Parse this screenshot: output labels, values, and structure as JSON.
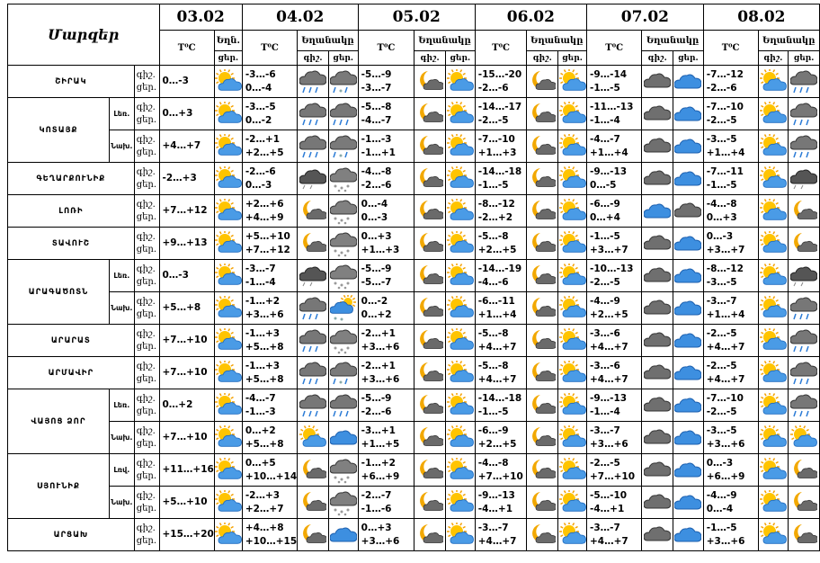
{
  "title": "Մարզեր",
  "dates": [
    "03.02",
    "04.02",
    "05.02",
    "06.02",
    "07.02",
    "08.02"
  ],
  "col_temp": "T⁰C",
  "col_weather": "Եղանակը",
  "col_weather_short": "Եղն.",
  "col_night": "գիշ.",
  "col_day": "ցեր.",
  "row_labels": {
    "night": "գիշ.",
    "day": "ցեր."
  },
  "rows": [
    {
      "region": "ՇԻՐԱԿ",
      "sub": "",
      "night": [
        "0…-3",
        "-3…-6",
        "-5…-9",
        "-15…-20",
        "-9…-14",
        "-7…-12"
      ],
      "day": [
        "",
        "0…-4",
        "-3…-7",
        "-2…-6",
        "-1…-5",
        "-2…-6"
      ],
      "icons": [
        "sun-cloud",
        "rain",
        "snow-rain",
        "moon-cloud",
        "sun-cloud",
        "moon-cloud",
        "sun-cloud",
        "cloud",
        "cloud-blue"
      ]
    },
    {
      "region": "ԿՈՏԱՅՔ",
      "sub": "Լեռ.",
      "night": [
        "0…+3",
        "-3…-5",
        "-5…-8",
        "-14…-17",
        "-11…-13",
        "-7…-10"
      ],
      "day": [
        "",
        "0…-2",
        "-4…-7",
        "-2…-5",
        "-1…-4",
        "-2…-5"
      ],
      "icons": [
        "sun-cloud",
        "rain",
        "rain",
        "moon-cloud",
        "sun-cloud",
        "moon-cloud",
        "sun-cloud",
        "cloud",
        "cloud-blue"
      ]
    },
    {
      "region": "",
      "sub": "Նախ.",
      "night": [
        "+4…+7",
        "-2…+1",
        "-1…-3",
        "-7…-10",
        "-4…-7",
        "-3…-5"
      ],
      "day": [
        "",
        "+2…+5",
        "-1…+1",
        "+1…+3",
        "+1…+4",
        "+1…+4"
      ],
      "icons": [
        "sun-cloud",
        "rain",
        "snow-rain",
        "moon-cloud",
        "sun-cloud",
        "moon-cloud",
        "sun-cloud",
        "cloud",
        "cloud-blue"
      ]
    },
    {
      "region": "ԳԵՂԱՐՔՈՒՆԻՔ",
      "sub": "",
      "night": [
        "-2…+3",
        "-2…-6",
        "-4…-8",
        "-14…-18",
        "-9…-13",
        "-7…-11"
      ],
      "day": [
        "",
        "0…-3",
        "-2…-6",
        "-1…-5",
        "0…-5",
        "-1…-5"
      ],
      "icons": [
        "sun-cloud",
        "cloud-dark",
        "snow",
        "moon-cloud",
        "sun-cloud",
        "moon-cloud",
        "sun-cloud",
        "cloud",
        "cloud-blue"
      ]
    },
    {
      "region": "ԼՈՌԻ",
      "sub": "",
      "night": [
        "+7…+12",
        "+2…+6",
        "0…-4",
        "-8…-12",
        "-6…-9",
        "-4…-8"
      ],
      "day": [
        "",
        "+4…+9",
        "0…-3",
        "-2…+2",
        "0…+4",
        "0…+3"
      ],
      "icons": [
        "sun-cloud",
        "moon-cloud",
        "snow",
        "moon-cloud",
        "sun-cloud",
        "moon-cloud",
        "sun-cloud",
        "cloud-blue",
        "cloud"
      ]
    },
    {
      "region": "ՏԱՎՈՒՇ",
      "sub": "",
      "night": [
        "+9…+13",
        "+5…+10",
        "0…+3",
        "-5…-8",
        "-1…-5",
        "0…-3"
      ],
      "day": [
        "",
        "+7…+12",
        "+1…+3",
        "+2…+5",
        "+3…+7",
        "+3…+7"
      ],
      "icons": [
        "sun-cloud",
        "moon-cloud",
        "snow",
        "moon-cloud",
        "sun-cloud",
        "moon-cloud",
        "sun-cloud",
        "cloud",
        "cloud-blue"
      ]
    },
    {
      "region": "ԱՐԱԳԱԾՈՏՆ",
      "sub": "Լեռ.",
      "night": [
        "0…-3",
        "-3…-7",
        "-5…-9",
        "-14…-19",
        "-10…-13",
        "-8…-12"
      ],
      "day": [
        "",
        "-1…-4",
        "-5…-7",
        "-4…-6",
        "-2…-5",
        "-3…-5"
      ],
      "icons": [
        "sun-cloud",
        "cloud-dark",
        "snow",
        "moon-cloud",
        "sun-cloud",
        "moon-cloud",
        "sun-cloud",
        "cloud",
        "cloud-blue"
      ]
    },
    {
      "region": "",
      "sub": "Նախ.",
      "night": [
        "+5…+8",
        "-1…+2",
        "0…-2",
        "-6…-11",
        "-4…-9",
        "-3…-7"
      ],
      "day": [
        "",
        "+3…+6",
        "0…+2",
        "+1…+4",
        "+2…+5",
        "+1…+4"
      ],
      "icons": [
        "sun-cloud",
        "rain",
        "snow-sun",
        "moon-cloud",
        "sun-cloud",
        "moon-cloud",
        "sun-cloud",
        "cloud",
        "cloud-blue"
      ]
    },
    {
      "region": "ԱՐԱՐԱՏ",
      "sub": "",
      "night": [
        "+7…+10",
        "-1…+3",
        "-2…+1",
        "-5…-8",
        "-3…-6",
        "-2…-5"
      ],
      "day": [
        "",
        "+5…+8",
        "+3…+6",
        "+4…+7",
        "+4…+7",
        "+4…+7"
      ],
      "icons": [
        "sun-cloud",
        "rain",
        "snow",
        "moon-cloud",
        "sun-cloud",
        "moon-cloud",
        "sun-cloud",
        "cloud",
        "cloud-blue"
      ]
    },
    {
      "region": "ԱՐՄԱՎԻՐ",
      "sub": "",
      "night": [
        "+7…+10",
        "-1…+3",
        "-2…+1",
        "-5…-8",
        "-3…-6",
        "-2…-5"
      ],
      "day": [
        "",
        "+5…+8",
        "+3…+6",
        "+4…+7",
        "+4…+7",
        "+4…+7"
      ],
      "icons": [
        "sun-cloud",
        "rain",
        "snow-rain",
        "moon-cloud",
        "sun-cloud",
        "moon-cloud",
        "sun-cloud",
        "cloud",
        "cloud-blue"
      ]
    },
    {
      "region": "ՎԱՅՈՑ ՁՈՐ",
      "sub": "Լեռ.",
      "night": [
        "0…+2",
        "-4…-7",
        "-5…-9",
        "-14…-18",
        "-9…-13",
        "-7…-10"
      ],
      "day": [
        "",
        "-1…-3",
        "-2…-6",
        "-1…-5",
        "-1…-4",
        "-2…-5"
      ],
      "icons": [
        "sun-cloud",
        "rain",
        "rain",
        "moon-cloud",
        "sun-cloud",
        "moon-cloud",
        "sun-cloud",
        "cloud",
        "cloud-blue"
      ]
    },
    {
      "region": "",
      "sub": "Նախ.",
      "night": [
        "+7…+10",
        "0…+2",
        "-3…+1",
        "-6…-9",
        "-3…-7",
        "-3…-5"
      ],
      "day": [
        "",
        "+5…+8",
        "+1…+5",
        "+2…+5",
        "+3…+6",
        "+3…+6"
      ],
      "icons": [
        "sun-cloud",
        "sun-cloud",
        "cloud-blue",
        "moon-cloud",
        "sun-cloud",
        "moon-cloud",
        "sun-cloud",
        "cloud",
        "cloud-blue"
      ]
    },
    {
      "region": "ՍՅՈՒՆԻՔ",
      "sub": "Լռվ.",
      "night": [
        "+11…+16",
        "0…+5",
        "-1…+2",
        "-4…-8",
        "-2…-5",
        "0…-3"
      ],
      "day": [
        "",
        "+10…+14",
        "+6…+9",
        "+7…+10",
        "+7…+10",
        "+6…+9"
      ],
      "icons": [
        "sun-cloud",
        "moon-cloud",
        "snow",
        "moon-cloud",
        "sun-cloud",
        "moon-cloud",
        "sun-cloud",
        "cloud",
        "cloud-blue"
      ]
    },
    {
      "region": "",
      "sub": "Նախ.",
      "night": [
        "+5…+10",
        "-2…+3",
        "-2…-7",
        "-9…-13",
        "-5…-10",
        "-4…-9"
      ],
      "day": [
        "",
        "+2…+7",
        "-1…-6",
        "-4…+1",
        "-4…+1",
        "0…-4"
      ],
      "icons": [
        "sun-cloud",
        "moon-cloud",
        "snow",
        "moon-cloud",
        "sun-cloud",
        "moon-cloud",
        "sun-cloud",
        "cloud",
        "cloud-blue"
      ]
    },
    {
      "region": "ԱՐՑԱԽ",
      "sub": "",
      "night": [
        "+15…+20",
        "+4…+8",
        "0…+3",
        "-3…-7",
        "-3…-7",
        "-1…-5"
      ],
      "day": [
        "",
        "+10…+15",
        "+3…+6",
        "+4…+7",
        "+4…+7",
        "+3…+6"
      ],
      "icons": [
        "sun-cloud",
        "moon-cloud",
        "cloud-blue",
        "moon-cloud",
        "sun-cloud",
        "moon-cloud",
        "sun-cloud",
        "cloud",
        "cloud-blue"
      ]
    }
  ]
}
